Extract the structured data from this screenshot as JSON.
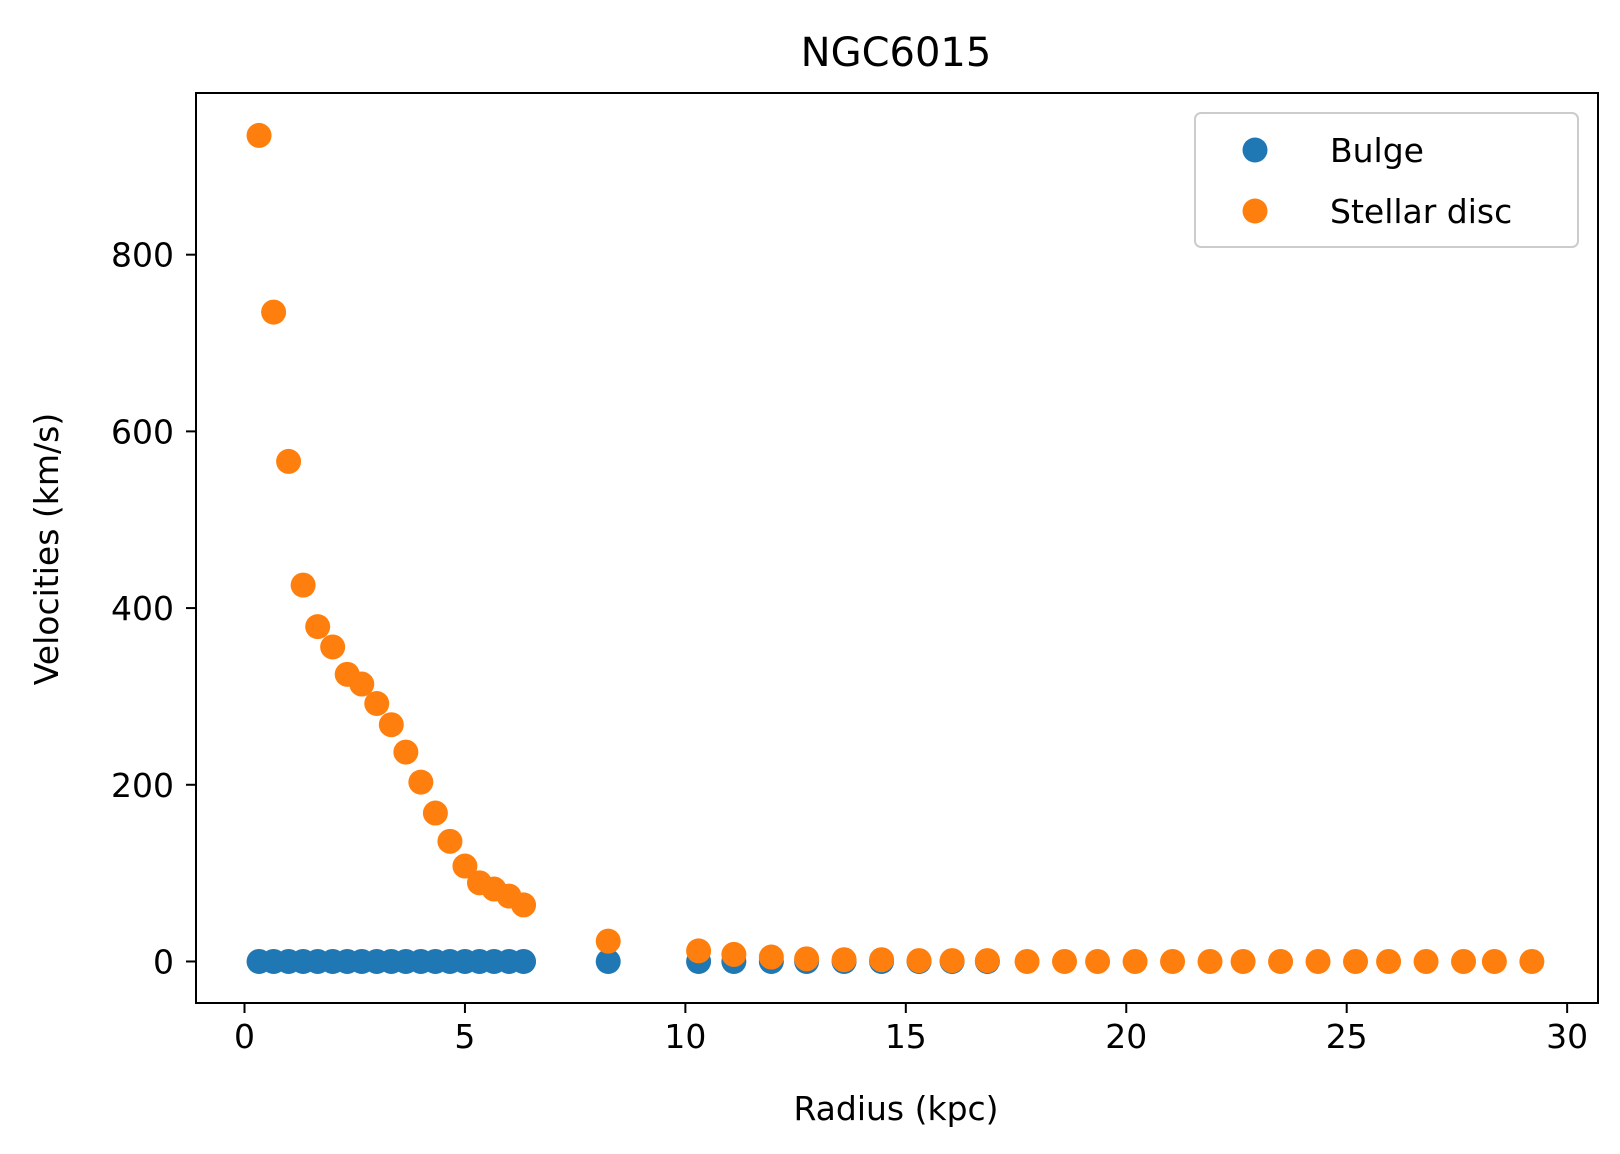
{
  "chart_data": {
    "type": "scatter",
    "title": "NGC6015",
    "xlabel": "Radius (kpc)",
    "ylabel": "Velocities (km/s)",
    "xlim": [
      -1.1,
      30.7
    ],
    "ylim": [
      -47,
      983
    ],
    "xticks": [
      0,
      5,
      10,
      15,
      20,
      25,
      30
    ],
    "yticks": [
      0,
      200,
      400,
      600,
      800
    ],
    "grid": false,
    "legend_position": "top-right",
    "series": [
      {
        "name": "Bulge",
        "color": "#1f77b4",
        "x": [
          0.33,
          0.66,
          1.0,
          1.33,
          1.66,
          2.0,
          2.33,
          2.66,
          3.0,
          3.33,
          3.66,
          4.0,
          4.33,
          4.66,
          5.0,
          5.33,
          5.66,
          6.0,
          6.33,
          8.25,
          10.3,
          11.1,
          11.95,
          12.75,
          13.6,
          14.45,
          15.3,
          16.05,
          16.85
        ],
        "y": [
          0,
          0,
          0,
          0,
          0,
          0,
          0,
          0,
          0,
          0,
          0,
          0,
          0,
          0,
          0,
          0,
          0,
          0,
          0,
          0,
          0,
          0,
          0,
          0,
          0,
          0,
          0,
          0,
          0
        ]
      },
      {
        "name": "Stellar disc",
        "color": "#ff7f0e",
        "x": [
          0.33,
          0.66,
          1.0,
          1.33,
          1.66,
          2.0,
          2.33,
          2.66,
          3.0,
          3.33,
          3.66,
          4.0,
          4.33,
          4.66,
          5.0,
          5.33,
          5.66,
          6.0,
          6.33,
          8.25,
          10.3,
          11.1,
          11.95,
          12.75,
          13.6,
          14.45,
          15.3,
          16.05,
          16.85,
          17.75,
          18.6,
          19.35,
          20.2,
          21.05,
          21.9,
          22.65,
          23.5,
          24.35,
          25.2,
          25.95,
          26.8,
          27.65,
          28.35,
          29.2
        ],
        "y": [
          935,
          735,
          566,
          426,
          379,
          356,
          325,
          314,
          292,
          268,
          237,
          203,
          168,
          136,
          108,
          89,
          82,
          74,
          64,
          23,
          12,
          8,
          5,
          3,
          2,
          2,
          1,
          1,
          1,
          0,
          0,
          0,
          0,
          0,
          0,
          0,
          0,
          0,
          0,
          0,
          0,
          0,
          0,
          0
        ]
      }
    ]
  }
}
